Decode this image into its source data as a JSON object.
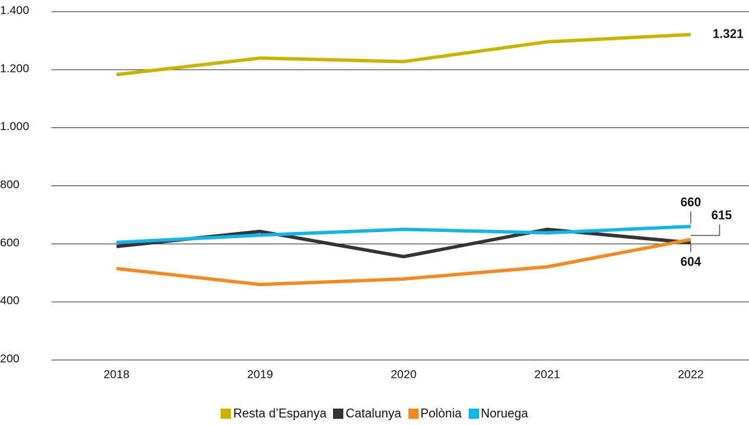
{
  "chart_data": {
    "type": "line",
    "categories": [
      "2018",
      "2019",
      "2020",
      "2021",
      "2022"
    ],
    "series": [
      {
        "name": "Resta d’Espanya",
        "color": "#c8b400",
        "values": [
          1183,
          1240,
          1228,
          1296,
          1321
        ],
        "value_labels": [
          null,
          null,
          null,
          null,
          "1.321"
        ]
      },
      {
        "name": "Catalunya",
        "color": "#333333",
        "values": [
          591,
          643,
          556,
          650,
          604
        ],
        "value_labels": [
          null,
          null,
          null,
          null,
          "604"
        ]
      },
      {
        "name": "Polònia",
        "color": "#f08a24",
        "values": [
          515,
          460,
          479,
          521,
          615
        ],
        "value_labels": [
          null,
          null,
          null,
          null,
          "615"
        ]
      },
      {
        "name": "Noruega",
        "color": "#16b4e6",
        "values": [
          605,
          630,
          650,
          638,
          660
        ],
        "value_labels": [
          null,
          null,
          null,
          null,
          "660"
        ]
      }
    ],
    "ylim": [
      200,
      1400
    ],
    "yticks": [
      200,
      400,
      600,
      800,
      {
        "value": 1000,
        "label": "1.000"
      },
      {
        "value": 1200,
        "label": "1.200"
      },
      {
        "value": 1400,
        "label": "1.400"
      }
    ],
    "grid": true
  }
}
